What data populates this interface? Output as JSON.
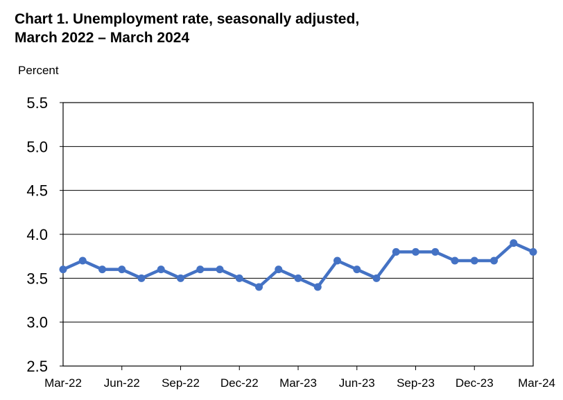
{
  "chart_data": {
    "type": "line",
    "title_line1": "Chart 1. Unemployment rate, seasonally adjusted,",
    "title_line2": "March 2022 – March 2024",
    "ylabel": "Percent",
    "xlabel": "",
    "ylim": [
      2.5,
      5.5
    ],
    "yticks": [
      "5.5",
      "5.0",
      "4.5",
      "4.0",
      "3.5",
      "3.0",
      "2.5"
    ],
    "xtick_labels": [
      "Mar-22",
      "Jun-22",
      "Sep-22",
      "Dec-22",
      "Mar-23",
      "Jun-23",
      "Sep-23",
      "Dec-23",
      "Mar-24"
    ],
    "grid": "horizontal",
    "line_color": "#4472c4",
    "x": [
      "Mar-22",
      "Apr-22",
      "May-22",
      "Jun-22",
      "Jul-22",
      "Aug-22",
      "Sep-22",
      "Oct-22",
      "Nov-22",
      "Dec-22",
      "Jan-23",
      "Feb-23",
      "Mar-23",
      "Apr-23",
      "May-23",
      "Jun-23",
      "Jul-23",
      "Aug-23",
      "Sep-23",
      "Oct-23",
      "Nov-23",
      "Dec-23",
      "Jan-24",
      "Feb-24",
      "Mar-24"
    ],
    "values": [
      3.6,
      3.7,
      3.6,
      3.6,
      3.5,
      3.6,
      3.5,
      3.6,
      3.6,
      3.5,
      3.4,
      3.6,
      3.5,
      3.4,
      3.7,
      3.6,
      3.5,
      3.8,
      3.8,
      3.8,
      3.7,
      3.7,
      3.7,
      3.9,
      3.8
    ]
  }
}
